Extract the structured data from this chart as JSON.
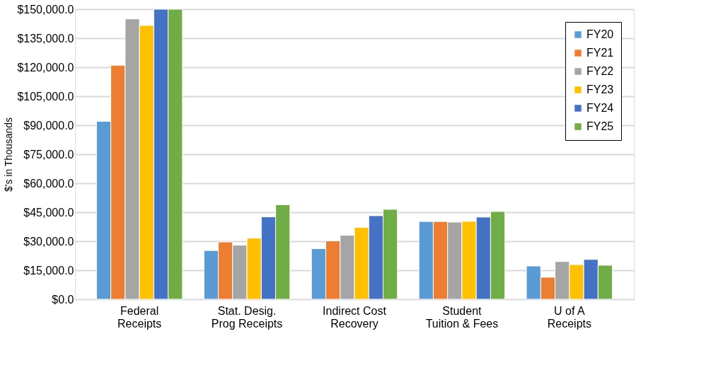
{
  "chart_data": {
    "type": "bar",
    "ylabel": "$'s in Thousands",
    "categories": [
      "Federal Receipts",
      "Stat. Desig. Prog Receipts",
      "Indirect Cost Recovery",
      "Student Tuition & Fees",
      "U of A Receipts"
    ],
    "series": [
      {
        "name": "FY20",
        "color": "#5b9bd5",
        "values": [
          92000,
          25200,
          26200,
          40200,
          17200
        ]
      },
      {
        "name": "FY21",
        "color": "#ed7d31",
        "values": [
          121000,
          29600,
          30200,
          40200,
          11400
        ]
      },
      {
        "name": "FY22",
        "color": "#a5a5a5",
        "values": [
          145000,
          28000,
          33100,
          39900,
          19500
        ]
      },
      {
        "name": "FY23",
        "color": "#ffc000",
        "values": [
          141600,
          31600,
          37200,
          40300,
          17900
        ]
      },
      {
        "name": "FY24",
        "color": "#4472c4",
        "values": [
          150000,
          42600,
          43200,
          42500,
          20600
        ]
      },
      {
        "name": "FY25",
        "color": "#70ad47",
        "values": [
          150000,
          48900,
          46500,
          45400,
          17600
        ]
      }
    ],
    "ylim": [
      0,
      150000
    ],
    "yticks": [
      {
        "value": 0,
        "label": "$0.0"
      },
      {
        "value": 15000,
        "label": "$15,000.0"
      },
      {
        "value": 30000,
        "label": "$30,000.0"
      },
      {
        "value": 45000,
        "label": "$45,000.0"
      },
      {
        "value": 60000,
        "label": "$60,000.0"
      },
      {
        "value": 75000,
        "label": "$75,000.0"
      },
      {
        "value": 90000,
        "label": "$90,000.0"
      },
      {
        "value": 105000,
        "label": "$105,000.0"
      },
      {
        "value": 120000,
        "label": "$120,000.0"
      },
      {
        "value": 135000,
        "label": "$135,000.0"
      },
      {
        "value": 150000,
        "label": "$150,000.0"
      }
    ],
    "grid": "y",
    "legend": "top right"
  }
}
